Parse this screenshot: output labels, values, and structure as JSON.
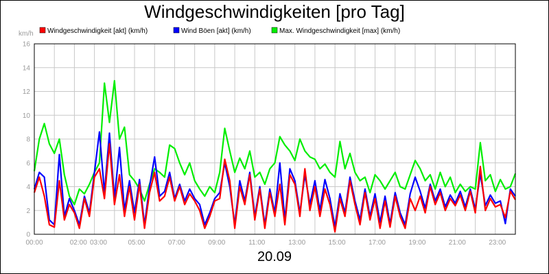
{
  "chart_data": {
    "type": "line",
    "title": "Windgeschwindigkeiten [pro Tag]",
    "ylabel": "km/h",
    "date_label": "20.09",
    "ylim": [
      0,
      16
    ],
    "yticks": [
      0,
      2,
      4,
      6,
      8,
      10,
      12,
      14,
      16
    ],
    "xlim": [
      0,
      24
    ],
    "xtick_labels": [
      "00:00",
      "02:00",
      "03:00",
      "05:00",
      "07:00",
      "09:00",
      "11:00",
      "13:00",
      "15:00",
      "17:00",
      "19:00",
      "21:00",
      "23:00"
    ],
    "xtick_values": [
      0,
      2.2,
      3.2,
      5.1,
      7.1,
      9.1,
      11.1,
      13.1,
      15.1,
      17.1,
      19.1,
      21.1,
      23.1
    ],
    "x": [
      0,
      0.25,
      0.5,
      0.75,
      1,
      1.25,
      1.5,
      1.75,
      2,
      2.25,
      2.5,
      2.75,
      3,
      3.25,
      3.5,
      3.75,
      4,
      4.25,
      4.5,
      4.75,
      5,
      5.25,
      5.5,
      5.75,
      6,
      6.25,
      6.5,
      6.75,
      7,
      7.25,
      7.5,
      7.75,
      8,
      8.25,
      8.5,
      8.75,
      9,
      9.25,
      9.5,
      9.75,
      10,
      10.25,
      10.5,
      10.75,
      11,
      11.25,
      11.5,
      11.75,
      12,
      12.25,
      12.5,
      12.75,
      13,
      13.25,
      13.5,
      13.75,
      14,
      14.25,
      14.5,
      14.75,
      15,
      15.25,
      15.5,
      15.75,
      16,
      16.25,
      16.5,
      16.75,
      17,
      17.25,
      17.5,
      17.75,
      18,
      18.25,
      18.5,
      18.75,
      19,
      19.25,
      19.5,
      19.75,
      20,
      20.25,
      20.5,
      20.75,
      21,
      21.25,
      21.5,
      21.75,
      22,
      22.25,
      22.5,
      22.75,
      23,
      23.25,
      23.5,
      23.75,
      24
    ],
    "series": [
      {
        "name": "Windgeschwindigkeit [akt] (km/h)",
        "color": "#ff0000",
        "values": [
          3.5,
          4.8,
          3.2,
          0.8,
          0.6,
          4.5,
          1.2,
          2.5,
          1.8,
          0.5,
          3.0,
          1.5,
          4.8,
          5.5,
          3.0,
          7.6,
          2.5,
          5.0,
          1.5,
          4.0,
          1.2,
          4.2,
          0.5,
          3.5,
          5.2,
          2.8,
          3.2,
          4.8,
          2.8,
          4.0,
          2.5,
          3.4,
          2.8,
          2.0,
          0.5,
          1.5,
          2.8,
          3.0,
          6.3,
          4.5,
          0.5,
          4.0,
          2.5,
          5.0,
          1.2,
          3.8,
          0.5,
          3.5,
          1.5,
          4.2,
          0.8,
          5.0,
          4.2,
          1.5,
          5.5,
          2.0,
          4.0,
          1.5,
          3.8,
          2.5,
          0.2,
          3.0,
          1.5,
          4.5,
          2.5,
          0.8,
          3.5,
          1.2,
          3.0,
          0.5,
          2.8,
          0.6,
          3.2,
          1.5,
          0.5,
          3.0,
          2.0,
          3.2,
          1.8,
          4.0,
          2.5,
          3.5,
          2.0,
          3.0,
          2.4,
          3.3,
          2.0,
          3.6,
          1.8,
          5.7,
          2.0,
          3.0,
          2.3,
          2.5,
          1.4,
          3.6,
          2.9
        ]
      },
      {
        "name": "Wind Böen [akt] (km/h)",
        "color": "#0000ff",
        "values": [
          3.8,
          5.2,
          4.8,
          1.2,
          0.8,
          6.7,
          1.5,
          3.0,
          2.0,
          0.8,
          3.2,
          1.8,
          5.2,
          8.6,
          3.5,
          8.5,
          3.0,
          7.3,
          2.0,
          4.5,
          1.8,
          4.6,
          0.8,
          4.0,
          6.5,
          3.2,
          3.6,
          5.2,
          3.0,
          4.2,
          2.8,
          3.8,
          3.0,
          2.5,
          0.8,
          1.8,
          3.0,
          3.5,
          6.0,
          4.0,
          0.8,
          4.5,
          2.8,
          5.2,
          1.5,
          4.0,
          0.8,
          3.8,
          1.8,
          6.0,
          1.2,
          5.5,
          4.5,
          1.8,
          5.0,
          2.5,
          4.5,
          2.0,
          4.6,
          3.0,
          0.6,
          3.4,
          1.8,
          4.8,
          2.8,
          1.2,
          3.8,
          1.5,
          3.4,
          1.0,
          3.2,
          0.9,
          3.5,
          1.8,
          0.8,
          3.4,
          4.8,
          3.6,
          2.2,
          4.2,
          2.8,
          3.8,
          2.3,
          3.3,
          2.6,
          3.6,
          2.3,
          3.8,
          2.1,
          5.1,
          2.4,
          3.3,
          2.6,
          2.8,
          0.9,
          3.8,
          3.2
        ]
      },
      {
        "name": "Max. Windgeschwindigkeit [max] (km/h)",
        "color": "#00ee00",
        "values": [
          5.3,
          8.0,
          9.3,
          7.6,
          6.8,
          8.0,
          5.0,
          3.2,
          2.5,
          3.8,
          3.4,
          4.2,
          5.2,
          6.0,
          12.7,
          9.4,
          12.9,
          8.0,
          9.0,
          5.0,
          4.5,
          3.8,
          2.8,
          4.2,
          5.5,
          5.2,
          4.8,
          7.5,
          7.2,
          6.0,
          5.0,
          6.0,
          4.5,
          3.8,
          3.2,
          4.0,
          3.5,
          5.2,
          8.9,
          7.0,
          5.2,
          6.4,
          5.5,
          7.0,
          4.8,
          5.2,
          4.2,
          5.5,
          6.0,
          8.2,
          7.5,
          7.0,
          6.2,
          8.0,
          7.0,
          6.5,
          6.3,
          5.5,
          5.9,
          5.2,
          4.8,
          7.8,
          5.5,
          6.8,
          5.2,
          4.5,
          4.8,
          3.5,
          5.0,
          4.5,
          3.8,
          4.5,
          5.2,
          4.0,
          3.8,
          5.0,
          6.2,
          5.5,
          4.5,
          5.0,
          3.8,
          5.2,
          4.0,
          4.8,
          3.5,
          4.2,
          3.6,
          4.0,
          3.8,
          7.7,
          4.5,
          5.0,
          3.6,
          4.6,
          3.8,
          4.0,
          5.1
        ]
      }
    ]
  }
}
